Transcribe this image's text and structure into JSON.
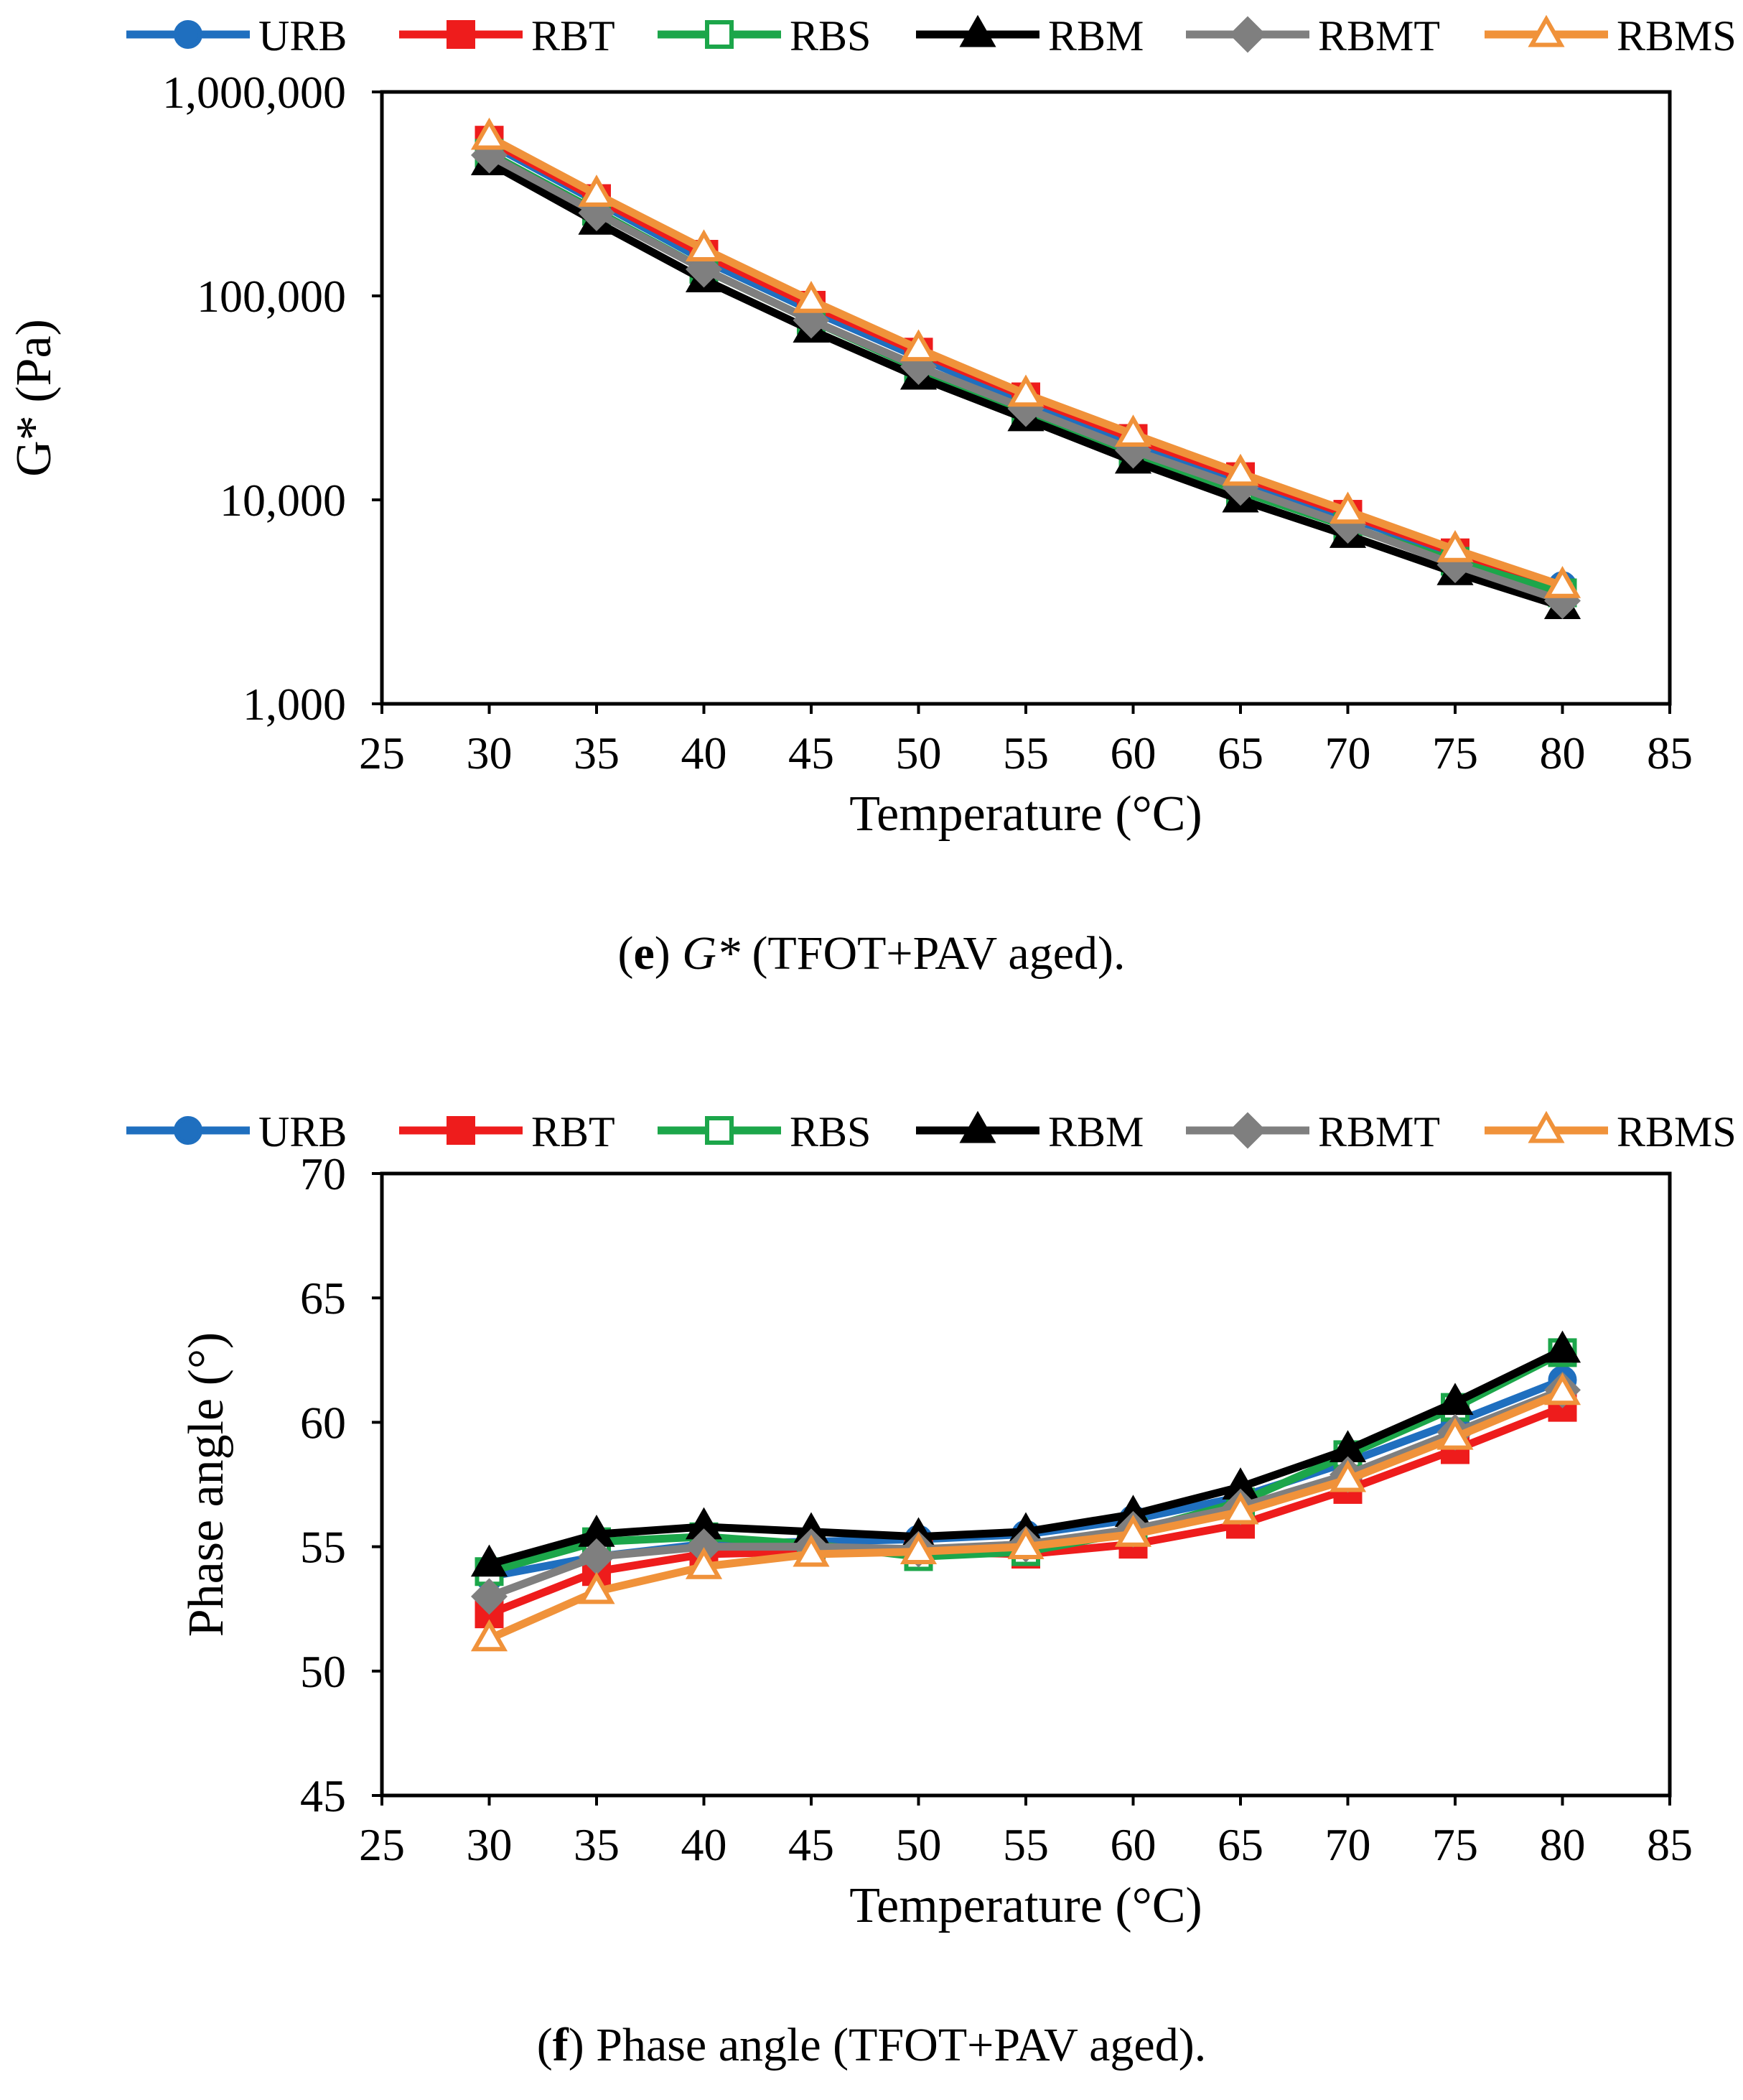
{
  "chart_data": [
    {
      "type": "line",
      "panel": "e",
      "title": "",
      "caption": {
        "letter": "e",
        "var": "G*",
        "rest": " (TFOT+PAV aged)."
      },
      "xlabel": "Temperature (°C)",
      "ylabel": "G* (Pa)",
      "yscale": "log",
      "xlim": [
        25,
        85
      ],
      "ylim": [
        1000,
        1000000
      ],
      "xticks": [
        "25",
        "30",
        "35",
        "40",
        "45",
        "50",
        "55",
        "60",
        "65",
        "70",
        "75",
        "80",
        "85"
      ],
      "yticks": [
        {
          "value": 1000,
          "label": "1,000"
        },
        {
          "value": 10000,
          "label": "10,000"
        },
        {
          "value": 100000,
          "label": "100,000"
        },
        {
          "value": 1000000,
          "label": "1,000,000"
        }
      ],
      "legend_position": "top",
      "x": [
        30,
        35,
        40,
        45,
        50,
        55,
        60,
        65,
        70,
        75,
        80
      ],
      "series": [
        {
          "name": "URB",
          "color": "#1f6fbf",
          "marker": "circle",
          "fill": "solid",
          "values": [
            560000,
            290000,
            150000,
            85000,
            50000,
            30000,
            19000,
            12500,
            8200,
            5400,
            3800
          ]
        },
        {
          "name": "RBT",
          "color": "#ee1c1c",
          "marker": "square",
          "fill": "solid",
          "values": [
            580000,
            300000,
            160000,
            90000,
            53000,
            32000,
            20000,
            13000,
            8500,
            5500,
            3500
          ]
        },
        {
          "name": "RBS",
          "color": "#1ca64a",
          "marker": "square",
          "fill": "open",
          "values": [
            500000,
            260000,
            135000,
            76000,
            44000,
            27000,
            17000,
            11000,
            7400,
            5000,
            3500
          ]
        },
        {
          "name": "RBM",
          "color": "#000000",
          "marker": "triangle",
          "fill": "solid",
          "values": [
            450000,
            230000,
            120000,
            68000,
            40000,
            25000,
            15500,
            10000,
            6700,
            4400,
            3000
          ]
        },
        {
          "name": "RBMT",
          "color": "#7f7f7f",
          "marker": "diamond",
          "fill": "solid",
          "values": [
            490000,
            255000,
            135000,
            76000,
            45000,
            28000,
            17500,
            11500,
            7500,
            4800,
            3200
          ]
        },
        {
          "name": "RBMS",
          "color": "#f0923a",
          "marker": "triangle",
          "fill": "open",
          "values": [
            600000,
            315000,
            170000,
            95000,
            55000,
            33000,
            21000,
            13500,
            8800,
            5700,
            3800
          ]
        }
      ]
    },
    {
      "type": "line",
      "panel": "f",
      "title": "",
      "caption": {
        "letter": "f",
        "var": "",
        "rest": " Phase angle (TFOT+PAV aged)."
      },
      "xlabel": "Temperature (°C)",
      "ylabel": "Phase angle (°)",
      "yscale": "linear",
      "xlim": [
        25,
        85
      ],
      "ylim": [
        45,
        70
      ],
      "xticks": [
        "25",
        "30",
        "35",
        "40",
        "45",
        "50",
        "55",
        "60",
        "65",
        "70",
        "75",
        "80",
        "85"
      ],
      "yticks": [
        {
          "value": 45,
          "label": "45"
        },
        {
          "value": 50,
          "label": "50"
        },
        {
          "value": 55,
          "label": "55"
        },
        {
          "value": 60,
          "label": "60"
        },
        {
          "value": 65,
          "label": "65"
        },
        {
          "value": 70,
          "label": "70"
        }
      ],
      "legend_position": "top",
      "x": [
        30,
        35,
        40,
        45,
        50,
        55,
        60,
        65,
        70,
        75,
        80
      ],
      "series": [
        {
          "name": "URB",
          "color": "#1f6fbf",
          "marker": "circle",
          "fill": "solid",
          "values": [
            53.8,
            54.6,
            55.1,
            55.2,
            55.3,
            55.5,
            56.1,
            57.0,
            58.4,
            60.0,
            61.7
          ]
        },
        {
          "name": "RBT",
          "color": "#ee1c1c",
          "marker": "square",
          "fill": "solid",
          "values": [
            52.3,
            54.0,
            54.7,
            54.8,
            54.8,
            54.7,
            55.1,
            55.9,
            57.3,
            58.9,
            60.6
          ]
        },
        {
          "name": "RBS",
          "color": "#1ca64a",
          "marker": "square",
          "fill": "open",
          "values": [
            54.0,
            55.2,
            55.4,
            55.1,
            54.6,
            54.8,
            55.6,
            56.8,
            58.7,
            60.6,
            62.8
          ]
        },
        {
          "name": "RBM",
          "color": "#000000",
          "marker": "triangle",
          "fill": "solid",
          "values": [
            54.3,
            55.5,
            55.8,
            55.6,
            55.4,
            55.6,
            56.3,
            57.4,
            58.9,
            60.8,
            62.9
          ]
        },
        {
          "name": "RBMT",
          "color": "#7f7f7f",
          "marker": "diamond",
          "fill": "solid",
          "values": [
            53.0,
            54.6,
            55.0,
            55.0,
            54.9,
            55.1,
            55.7,
            56.6,
            57.9,
            59.6,
            61.3
          ]
        },
        {
          "name": "RBMS",
          "color": "#f0923a",
          "marker": "triangle",
          "fill": "open",
          "values": [
            51.3,
            53.2,
            54.2,
            54.7,
            54.8,
            55.0,
            55.5,
            56.4,
            57.7,
            59.4,
            61.2
          ]
        }
      ]
    }
  ]
}
